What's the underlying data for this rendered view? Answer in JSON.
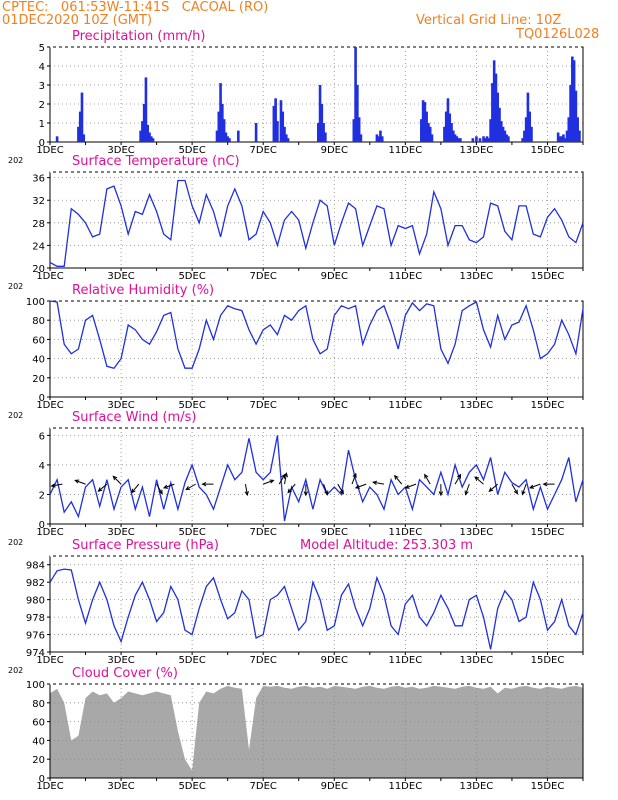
{
  "header": {
    "line1": "CPTEC:   061:53W-11:41S   CACOAL (RO)",
    "line2": "01DEC2020 10Z (GMT)",
    "grid_note": "Vertical Grid Line: 10Z",
    "model_code": "TQ0126L028"
  },
  "colors": {
    "header_text": "#f08020",
    "panel_title": "#e0109a",
    "series_line": "#2030e0",
    "cloud_fill": "#a8a8a8",
    "wind_arrow": "#000000"
  },
  "x_axis": {
    "ticks": [
      "1DEC",
      "3DEC",
      "5DEC",
      "7DEC",
      "9DEC",
      "11DEC",
      "13DEC",
      "15DEC"
    ],
    "tick_days": [
      0,
      2,
      4,
      6,
      8,
      10,
      12,
      14
    ],
    "range_days": [
      0,
      15.0
    ],
    "year_fragment": "202"
  },
  "chart_data": [
    {
      "type": "bar",
      "title": "Precipitation (mm/h)",
      "ylim": [
        0,
        5
      ],
      "yticks": [
        0,
        1,
        2,
        3,
        4,
        5
      ],
      "grid": true,
      "x_days": [
        0.2,
        0.8,
        0.85,
        0.9,
        0.95,
        2.55,
        2.6,
        2.65,
        2.7,
        2.75,
        2.8,
        2.85,
        2.9,
        4.7,
        4.75,
        4.8,
        4.85,
        4.9,
        4.95,
        5.0,
        5.05,
        5.3,
        5.8,
        6.3,
        6.35,
        6.4,
        6.5,
        6.55,
        6.6,
        6.65,
        6.7,
        7.55,
        7.6,
        7.65,
        7.7,
        7.75,
        8.55,
        8.6,
        8.65,
        8.7,
        8.75,
        9.2,
        9.25,
        9.3,
        9.35,
        10.45,
        10.5,
        10.55,
        10.6,
        10.65,
        10.7,
        10.75,
        11.1,
        11.15,
        11.2,
        11.25,
        11.3,
        11.35,
        11.4,
        11.45,
        11.5,
        11.55,
        11.9,
        12.0,
        12.1,
        12.2,
        12.25,
        12.3,
        12.35,
        12.4,
        12.45,
        12.5,
        12.55,
        12.6,
        12.65,
        12.7,
        12.75,
        12.8,
        12.85,
        12.9,
        13.3,
        13.35,
        13.4,
        13.45,
        13.5,
        13.55,
        14.3,
        14.35,
        14.4,
        14.45,
        14.5,
        14.55,
        14.6,
        14.65,
        14.7,
        14.75,
        14.8,
        14.85,
        14.9
      ],
      "values": [
        0.3,
        0.8,
        1.6,
        2.6,
        0.4,
        0.6,
        1.1,
        2.0,
        3.4,
        0.9,
        0.5,
        0.3,
        0.2,
        0.6,
        1.6,
        3.1,
        2.0,
        1.2,
        0.5,
        0.3,
        0.2,
        0.6,
        1.0,
        1.9,
        2.3,
        1.1,
        2.2,
        1.6,
        0.8,
        0.4,
        0.2,
        1.0,
        3.0,
        2.0,
        1.0,
        0.5,
        1.2,
        5.0,
        3.0,
        1.3,
        0.4,
        0.4,
        0.3,
        0.6,
        0.3,
        1.2,
        2.2,
        2.1,
        1.6,
        1.0,
        0.8,
        0.4,
        0.8,
        1.6,
        2.3,
        1.5,
        1.0,
        0.6,
        0.4,
        0.3,
        0.2,
        0.2,
        0.2,
        0.3,
        0.2,
        0.3,
        0.2,
        0.3,
        0.2,
        1.2,
        3.1,
        4.3,
        3.6,
        2.6,
        1.8,
        1.1,
        0.8,
        0.6,
        0.4,
        0.3,
        0.2,
        0.6,
        1.3,
        2.6,
        1.6,
        0.8,
        0.5,
        0.3,
        0.3,
        0.4,
        0.2,
        0.6,
        1.3,
        3.0,
        4.5,
        4.3,
        2.7,
        1.3,
        0.6
      ]
    },
    {
      "type": "line",
      "title": "Surface Temperature (nC)",
      "ylim": [
        20,
        37
      ],
      "yticks": [
        20,
        24,
        28,
        32,
        36
      ],
      "grid": true,
      "x_days": [
        0,
        0.2,
        0.4,
        0.6,
        0.8,
        1.0,
        1.2,
        1.4,
        1.6,
        1.8,
        2.0,
        2.2,
        2.4,
        2.6,
        2.8,
        3.0,
        3.2,
        3.4,
        3.6,
        3.8,
        4.0,
        4.2,
        4.4,
        4.6,
        4.8,
        5.0,
        5.2,
        5.4,
        5.6,
        5.8,
        6.0,
        6.2,
        6.4,
        6.6,
        6.8,
        7.0,
        7.2,
        7.4,
        7.6,
        7.8,
        8.0,
        8.2,
        8.4,
        8.6,
        8.8,
        9.0,
        9.2,
        9.4,
        9.6,
        9.8,
        10.0,
        10.2,
        10.4,
        10.6,
        10.8,
        11.0,
        11.2,
        11.4,
        11.6,
        11.8,
        12.0,
        12.2,
        12.4,
        12.6,
        12.8,
        13.0,
        13.2,
        13.4,
        13.6,
        13.8,
        14.0,
        14.2,
        14.4,
        14.6,
        14.8,
        15.0
      ],
      "values": [
        21.0,
        20.3,
        20.3,
        30.5,
        29.5,
        28.0,
        25.5,
        26.0,
        34.0,
        34.5,
        31.0,
        26.0,
        30.0,
        29.5,
        33.0,
        30.0,
        26.0,
        25.0,
        35.5,
        35.5,
        31.0,
        28.0,
        33.0,
        30.0,
        25.5,
        31.0,
        34.0,
        31.0,
        25.0,
        26.0,
        30.0,
        28.0,
        24.0,
        28.5,
        30.0,
        28.5,
        23.5,
        28.0,
        32.0,
        31.0,
        24.0,
        28.0,
        31.5,
        30.5,
        24.0,
        27.5,
        31.0,
        30.5,
        24.0,
        27.5,
        27.0,
        27.5,
        22.5,
        26.0,
        33.5,
        30.5,
        24.0,
        27.5,
        27.5,
        25.0,
        24.5,
        25.5,
        31.5,
        31.0,
        26.5,
        25.0,
        31.0,
        31.0,
        26.0,
        25.5,
        29.0,
        30.5,
        28.5,
        25.5,
        24.5,
        28.0
      ]
    },
    {
      "type": "line",
      "title": "Relative Humidity (%)",
      "ylim": [
        0,
        100
      ],
      "yticks": [
        0,
        20,
        40,
        60,
        80,
        100
      ],
      "grid": true,
      "x_days": [
        0,
        0.2,
        0.4,
        0.6,
        0.8,
        1.0,
        1.2,
        1.4,
        1.6,
        1.8,
        2.0,
        2.2,
        2.4,
        2.6,
        2.8,
        3.0,
        3.2,
        3.4,
        3.6,
        3.8,
        4.0,
        4.2,
        4.4,
        4.6,
        4.8,
        5.0,
        5.2,
        5.4,
        5.6,
        5.8,
        6.0,
        6.2,
        6.4,
        6.6,
        6.8,
        7.0,
        7.2,
        7.4,
        7.6,
        7.8,
        8.0,
        8.2,
        8.4,
        8.6,
        8.8,
        9.0,
        9.2,
        9.4,
        9.6,
        9.8,
        10.0,
        10.2,
        10.4,
        10.6,
        10.8,
        11.0,
        11.2,
        11.4,
        11.6,
        11.8,
        12.0,
        12.2,
        12.4,
        12.6,
        12.8,
        13.0,
        13.2,
        13.4,
        13.6,
        13.8,
        14.0,
        14.2,
        14.4,
        14.6,
        14.8,
        15.0
      ],
      "values": [
        100,
        99,
        55,
        45,
        50,
        80,
        85,
        60,
        32,
        30,
        40,
        75,
        70,
        60,
        55,
        68,
        85,
        88,
        50,
        30,
        30,
        50,
        80,
        60,
        85,
        95,
        92,
        90,
        70,
        55,
        70,
        75,
        65,
        85,
        80,
        90,
        95,
        60,
        45,
        50,
        85,
        95,
        92,
        95,
        55,
        75,
        90,
        95,
        75,
        50,
        85,
        98,
        90,
        97,
        95,
        50,
        35,
        55,
        90,
        95,
        99,
        70,
        52,
        85,
        60,
        75,
        78,
        95,
        70,
        40,
        45,
        55,
        80,
        65,
        45,
        92
      ]
    },
    {
      "type": "line",
      "title": "Surface Wind (m/s)",
      "ylim": [
        0,
        6.5
      ],
      "yticks": [
        0,
        2,
        4,
        6
      ],
      "grid": true,
      "x_days": [
        0,
        0.2,
        0.4,
        0.6,
        0.8,
        1.0,
        1.2,
        1.4,
        1.6,
        1.8,
        2.0,
        2.2,
        2.4,
        2.6,
        2.8,
        3.0,
        3.2,
        3.4,
        3.6,
        3.8,
        4.0,
        4.2,
        4.4,
        4.6,
        4.8,
        5.0,
        5.2,
        5.4,
        5.6,
        5.8,
        6.0,
        6.2,
        6.4,
        6.6,
        6.8,
        7.0,
        7.2,
        7.4,
        7.6,
        7.8,
        8.0,
        8.2,
        8.4,
        8.6,
        8.8,
        9.0,
        9.2,
        9.4,
        9.6,
        9.8,
        10.0,
        10.2,
        10.4,
        10.6,
        10.8,
        11.0,
        11.2,
        11.4,
        11.6,
        11.8,
        12.0,
        12.2,
        12.4,
        12.6,
        12.8,
        13.0,
        13.2,
        13.4,
        13.6,
        13.8,
        14.0,
        14.2,
        14.4,
        14.6,
        14.8,
        15.0
      ],
      "values": [
        2.0,
        3.0,
        0.8,
        1.5,
        0.5,
        2.5,
        3.0,
        1.2,
        3.0,
        1.0,
        2.5,
        3.0,
        1.0,
        2.5,
        0.5,
        3.0,
        1.0,
        2.8,
        1.0,
        2.8,
        4.0,
        2.5,
        2.0,
        1.0,
        2.5,
        4.0,
        3.0,
        3.5,
        5.8,
        3.5,
        3.0,
        3.5,
        6.0,
        0.2,
        2.5,
        1.5,
        3.0,
        1.0,
        3.0,
        2.0,
        2.5,
        2.0,
        5.0,
        3.0,
        1.5,
        2.5,
        2.0,
        1.0,
        3.0,
        2.0,
        2.5,
        1.0,
        3.0,
        2.5,
        2.0,
        3.5,
        2.0,
        4.0,
        2.5,
        3.5,
        4.0,
        3.0,
        4.5,
        2.0,
        3.5,
        2.8,
        2.5,
        3.0,
        1.0,
        2.5,
        1.0,
        2.0,
        3.0,
        4.5,
        1.5,
        3.0
      ],
      "arrows": [
        {
          "x": 0.35,
          "dir": 190
        },
        {
          "x": 1.0,
          "dir": 160
        },
        {
          "x": 1.6,
          "dir": 220
        },
        {
          "x": 2.0,
          "dir": 135
        },
        {
          "x": 2.5,
          "dir": 230
        },
        {
          "x": 3.0,
          "dir": 300
        },
        {
          "x": 3.5,
          "dir": 200
        },
        {
          "x": 4.1,
          "dir": 210
        },
        {
          "x": 4.6,
          "dir": 180
        },
        {
          "x": 5.5,
          "dir": 280
        },
        {
          "x": 6.0,
          "dir": 20
        },
        {
          "x": 6.45,
          "dir": 60
        },
        {
          "x": 6.6,
          "dir": 80
        },
        {
          "x": 6.9,
          "dir": 230
        },
        {
          "x": 7.2,
          "dir": 270
        },
        {
          "x": 7.7,
          "dir": 290
        },
        {
          "x": 8.1,
          "dir": 300
        },
        {
          "x": 8.5,
          "dir": 70
        },
        {
          "x": 8.9,
          "dir": 200
        },
        {
          "x": 9.4,
          "dir": 170
        },
        {
          "x": 9.9,
          "dir": 130
        },
        {
          "x": 10.3,
          "dir": 200
        },
        {
          "x": 10.7,
          "dir": 120
        },
        {
          "x": 11.0,
          "dir": 270
        },
        {
          "x": 11.4,
          "dir": 60
        },
        {
          "x": 11.8,
          "dir": 250
        },
        {
          "x": 12.2,
          "dir": 140
        },
        {
          "x": 12.6,
          "dir": 220
        },
        {
          "x": 13.0,
          "dir": 300
        },
        {
          "x": 13.4,
          "dir": 250
        },
        {
          "x": 13.8,
          "dir": 200
        },
        {
          "x": 14.2,
          "dir": 180
        }
      ]
    },
    {
      "type": "line",
      "title": "Surface Pressure (hPa)",
      "annotation": "Model Altitude: 253.303 m",
      "ylim": [
        974,
        985
      ],
      "yticks": [
        974,
        976,
        978,
        980,
        982,
        984
      ],
      "grid": true,
      "x_days": [
        0,
        0.2,
        0.4,
        0.6,
        0.8,
        1.0,
        1.2,
        1.4,
        1.6,
        1.8,
        2.0,
        2.2,
        2.4,
        2.6,
        2.8,
        3.0,
        3.2,
        3.4,
        3.6,
        3.8,
        4.0,
        4.2,
        4.4,
        4.6,
        4.8,
        5.0,
        5.2,
        5.4,
        5.6,
        5.8,
        6.0,
        6.2,
        6.4,
        6.6,
        6.8,
        7.0,
        7.2,
        7.4,
        7.6,
        7.8,
        8.0,
        8.2,
        8.4,
        8.6,
        8.8,
        9.0,
        9.2,
        9.4,
        9.6,
        9.8,
        10.0,
        10.2,
        10.4,
        10.6,
        10.8,
        11.0,
        11.2,
        11.4,
        11.6,
        11.8,
        12.0,
        12.2,
        12.4,
        12.6,
        12.8,
        13.0,
        13.2,
        13.4,
        13.6,
        13.8,
        14.0,
        14.2,
        14.4,
        14.6,
        14.8,
        15.0
      ],
      "values": [
        982.0,
        983.3,
        983.5,
        983.4,
        980.0,
        977.3,
        980.0,
        982.0,
        980.0,
        977.0,
        975.2,
        978.0,
        980.5,
        982.0,
        980.0,
        977.5,
        978.5,
        981.5,
        980.0,
        976.5,
        976.0,
        979.0,
        981.5,
        982.5,
        980.0,
        977.8,
        978.5,
        981.0,
        980.0,
        975.6,
        976.0,
        980.0,
        980.5,
        981.5,
        979.0,
        976.5,
        977.5,
        982.0,
        980.0,
        976.5,
        977.0,
        980.5,
        981.8,
        979.0,
        977.0,
        979.0,
        982.5,
        980.5,
        977.0,
        976.0,
        979.5,
        980.5,
        978.0,
        977.0,
        978.5,
        980.5,
        979.0,
        977.0,
        977.0,
        980.0,
        980.5,
        978.0,
        974.3,
        979.0,
        981.0,
        980.0,
        977.5,
        978.0,
        982.0,
        980.0,
        976.5,
        977.5,
        980.0,
        977.0,
        976.0,
        978.5
      ]
    },
    {
      "type": "area",
      "title": "Cloud Cover (%)",
      "ylim": [
        0,
        100
      ],
      "yticks": [
        0,
        20,
        40,
        60,
        80,
        100
      ],
      "grid": true,
      "x_days": [
        0,
        0.2,
        0.4,
        0.6,
        0.8,
        1.0,
        1.2,
        1.4,
        1.6,
        1.8,
        2.0,
        2.2,
        2.4,
        2.6,
        2.8,
        3.0,
        3.2,
        3.4,
        3.6,
        3.8,
        4.0,
        4.2,
        4.4,
        4.6,
        4.8,
        5.0,
        5.2,
        5.4,
        5.6,
        5.8,
        6.0,
        6.2,
        6.4,
        6.6,
        6.8,
        7.0,
        7.2,
        7.4,
        7.6,
        7.8,
        8.0,
        8.2,
        8.4,
        8.6,
        8.8,
        9.0,
        9.2,
        9.4,
        9.6,
        9.8,
        10.0,
        10.2,
        10.4,
        10.6,
        10.8,
        11.0,
        11.2,
        11.4,
        11.6,
        11.8,
        12.0,
        12.2,
        12.4,
        12.6,
        12.8,
        13.0,
        13.2,
        13.4,
        13.6,
        13.8,
        14.0,
        14.2,
        14.4,
        14.6,
        14.8,
        15.0
      ],
      "values": [
        90,
        95,
        80,
        40,
        45,
        85,
        92,
        88,
        90,
        80,
        85,
        92,
        90,
        88,
        90,
        92,
        90,
        88,
        50,
        20,
        8,
        80,
        92,
        90,
        95,
        98,
        96,
        95,
        30,
        85,
        98,
        97,
        98,
        96,
        95,
        97,
        98,
        96,
        97,
        95,
        98,
        97,
        96,
        95,
        97,
        98,
        96,
        95,
        97,
        98,
        96,
        97,
        95,
        96,
        98,
        97,
        96,
        95,
        97,
        98,
        96,
        95,
        97,
        90,
        96,
        95,
        97,
        98,
        96,
        95,
        97,
        96,
        95,
        97,
        98,
        96
      ]
    }
  ]
}
